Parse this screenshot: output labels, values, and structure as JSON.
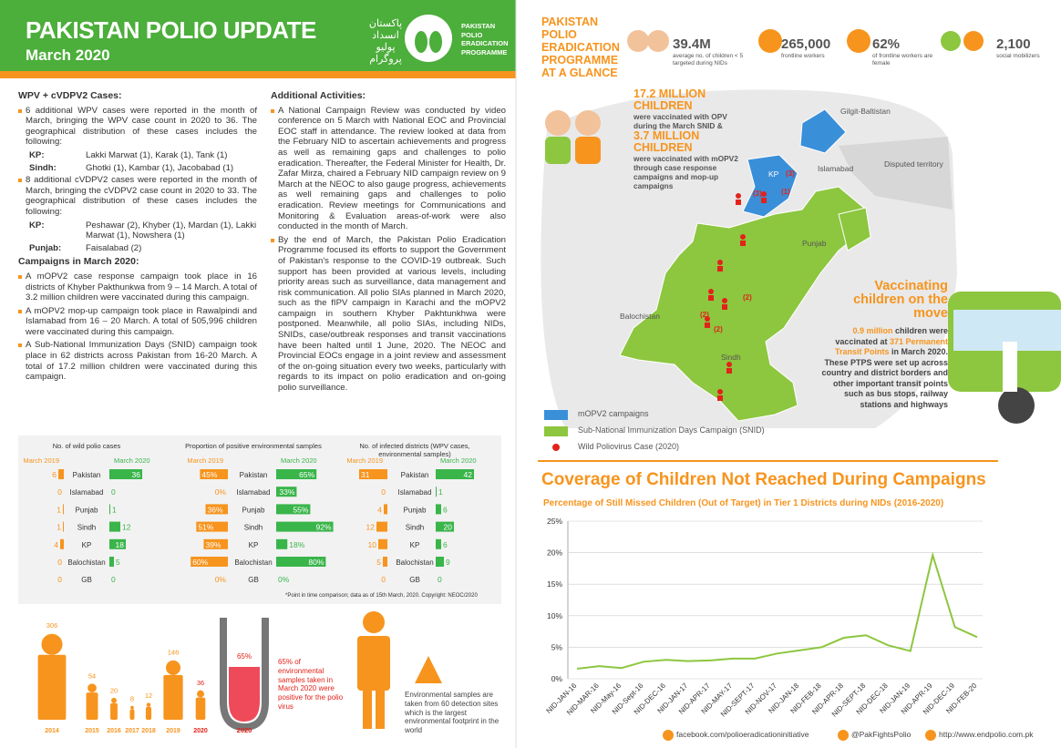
{
  "header": {
    "title": "PAKISTAN POLIO UPDATE",
    "subtitle": "March 2020",
    "urdu": "پاکستان انسداد پولیو پروگرام",
    "logo_text": "PAKISTAN POLIO ERADICATION PROGRAMME"
  },
  "glance": {
    "title": "PAKISTAN POLIO ERADICATION PROGRAMME AT A GLANCE",
    "stats": [
      {
        "value": "39.4M",
        "label": "average no. of children < 5 targeted during NIDs"
      },
      {
        "value": "265,000",
        "label": "frontline workers"
      },
      {
        "value": "62%",
        "label": "of frontline workers are female"
      },
      {
        "value": "2,100",
        "label": "social mobilizers"
      }
    ]
  },
  "wpv": {
    "heading": "WPV + cVDPV2 Cases:",
    "items": [
      {
        "text": "6 additional WPV cases were reported in the month of March, bringing the WPV case count in 2020 to 36. The geographical distribution of these cases includes the following:",
        "sub": [
          {
            "region": "KP:",
            "detail": "Lakki Marwat (1), Karak (1), Tank (1)"
          },
          {
            "region": "Sindh:",
            "detail": "Ghotki (1), Kambar (1), Jacobabad (1)"
          }
        ]
      },
      {
        "text": "8 additional cVDPV2 cases were reported in the month of March, bringing the cVDPV2 case count in 2020 to 33. The geographical distribution of these cases includes the following:",
        "sub": [
          {
            "region": "KP:",
            "detail": "Peshawar (2), Khyber (1), Mardan (1), Lakki Marwat (1), Nowshera (1)"
          },
          {
            "region": "Punjab:",
            "detail": "Faisalabad (2)"
          }
        ]
      }
    ]
  },
  "campaigns": {
    "heading": "Campaigns in March 2020:",
    "items": [
      {
        "text": "A mOPV2 case response campaign took place in 16 districts of Khyber Pakthunkwa from 9 – 14 March. A total of 3.2 million children were vaccinated during this campaign."
      },
      {
        "text": "A mOPV2 mop-up campaign took place in Rawalpindi and Islamabad from 16 – 20 March. A total of 505,996 children were vaccinated during this campaign."
      },
      {
        "text": "A Sub-National Immunization Days (SNID) campaign took place in 62 districts across Pakistan from 16-20 March. A total of 17.2 million children were vaccinated during this campaign."
      }
    ]
  },
  "activities": {
    "heading": "Additional Activities:",
    "items": [
      {
        "text": "A National Campaign Review was conducted by video conference on 5 March with National EOC and Provincial EOC staff in attendance. The review looked at data from the February NID to ascertain achievements and progress as well as remaining gaps and challenges to polio eradication. Thereafter, the Federal Minister for Health, Dr. Zafar Mirza, chaired a February NID campaign review on 9 March at the NEOC to also gauge progress, achievements as well remaining gaps and challenges to polio eradication. Review meetings for Communications and Monitoring & Evaluation areas-of-work were also conducted in the month of March."
      },
      {
        "text": "By the end of March, the Pakistan Polio Eradication Programme focused its efforts to support the Government of Pakistan's response to the COVID-19 outbreak. Such support has been provided at various levels, including priority areas such as surveillance, data management and risk communication. All polio SIAs planned in March 2020, such as the fIPV campaign in Karachi and the mOPV2 campaign in southern Khyber Pakhtunkhwa were postponed. Meanwhile, all polio SIAs, including NIDs, SNIDs, case/outbreak responses and transit vaccinations have been halted until 1 June, 2020. The NEOC and Provincial EOCs engage in a joint review and assessment of the on-going situation every two weeks, particularly with regards to its impact on polio eradication and on-going polio surveillance."
      }
    ]
  },
  "map": {
    "callout": [
      {
        "text": "17.2 MILLION CHILDREN",
        "emphasis": true
      },
      {
        "text": "were vaccinated with OPV during the March SNID &",
        "emphasis": false
      },
      {
        "text": "3.7 MILLION CHILDREN",
        "emphasis": true
      },
      {
        "text": "were vaccinated with mOPV2 through case response campaigns and mop-up campaigns",
        "emphasis": false
      }
    ],
    "labels": [
      "Gilgit-Baltistan",
      "Disputed territory",
      "Islamabad",
      "KP",
      "Punjab",
      "Balochistan",
      "Sindh"
    ],
    "case_counts": [
      "(3)",
      "(3)",
      "(1)",
      "(2)",
      "(2)",
      "(2)"
    ],
    "legend": [
      {
        "name": "mOPV2 campaigns",
        "color": "#3a8fd9"
      },
      {
        "name": "Sub-National Immunization Days Campaign (SNID)",
        "color": "#8dc63f"
      },
      {
        "name": "Wild Poliovirus Case (2020)",
        "color": "#e2231a"
      }
    ]
  },
  "transit": {
    "title": "Vaccinating children on the move",
    "segments": [
      {
        "text": "0.9 million",
        "emphasis": true
      },
      {
        "text": " children were vaccinated at ",
        "emphasis": false
      },
      {
        "text": "371 Permanent Transit Points",
        "emphasis": true
      },
      {
        "text": " in March 2020. These PTPS were set up across country and district borders and other important transit points such as bus stops, railway stations and highways",
        "emphasis": false
      }
    ]
  },
  "tables": [
    {
      "title": "No. of wild polio cases",
      "regions": [
        "Pakistan",
        "Islamabad",
        "Punjab",
        "Sindh",
        "KP",
        "Balochistan",
        "GB"
      ],
      "series": [
        {
          "name": "March 2019",
          "color": "#f7941d",
          "values": [
            6,
            0,
            1,
            1,
            4,
            0,
            0
          ]
        },
        {
          "name": "March 2020",
          "color": "#39b54a",
          "values": [
            36,
            0,
            1,
            12,
            18,
            5,
            0
          ]
        }
      ]
    },
    {
      "title": "Proportion of positive environmental samples",
      "regions": [
        "Pakistan",
        "Islamabad",
        "Punjab",
        "Sindh",
        "KP",
        "Balochistan",
        "GB"
      ],
      "series": [
        {
          "name": "March 2019",
          "color": "#f7941d",
          "values": [
            45,
            0,
            36,
            51,
            39,
            60,
            0
          ],
          "value_labels": [
            "45%",
            "0%",
            "36%",
            "51%",
            "39%",
            "60%",
            "0%"
          ]
        },
        {
          "name": "March 2020",
          "color": "#39b54a",
          "values": [
            65,
            33,
            55,
            92,
            18,
            80,
            0
          ],
          "value_labels": [
            "65%",
            "33%",
            "55%",
            "92%",
            "18%",
            "80%",
            "0%"
          ]
        }
      ]
    },
    {
      "title": "No. of infected districts (WPV cases, environmental samples)",
      "regions": [
        "Pakistan",
        "Islamabad",
        "Punjab",
        "Sindh",
        "KP",
        "Balochistan",
        "GB"
      ],
      "series": [
        {
          "name": "March 2019",
          "color": "#f7941d",
          "values": [
            31,
            0,
            4,
            12,
            10,
            5,
            0
          ]
        },
        {
          "name": "March 2020",
          "color": "#39b54a",
          "values": [
            42,
            1,
            6,
            20,
            6,
            9,
            0
          ]
        }
      ]
    }
  ],
  "tables_note": "*Point in time comparison; data as of 15th March, 2020. Copyright: NEOC/2020",
  "cases_by_year": {
    "years": [
      "2014",
      "2015",
      "2016",
      "2017",
      "2018",
      "2019",
      "2020"
    ],
    "values": [
      306,
      54,
      20,
      8,
      12,
      146,
      36
    ]
  },
  "env_samples": {
    "tube_label": "65%",
    "year": "2020",
    "text": "65% of environmental samples taken in March 2020 were positive for the polio virus"
  },
  "env_sites": {
    "text": "Environmental samples are taken from 60 detection sites which is the largest environmental footprint in the world"
  },
  "chart_data": {
    "type": "line",
    "title": "Coverage of Children Not Reached During Campaigns",
    "subtitle": "Percentage of Still Missed Children (Out of Target) in Tier 1 Districts during NIDs (2016-2020)",
    "categories": [
      "NID-JAN-16",
      "NID-MAR-16",
      "NID-May-16",
      "NID-Sept-16",
      "NID-DEC-16",
      "NID-JAN-17",
      "NID-APR-17",
      "NID-MAY-17",
      "NID-SEPT-17",
      "NID-NOV-17",
      "NID-JAN-18",
      "NID-FEB-18",
      "NID-APR-18",
      "NID-SEPT-18",
      "NID-DEC-18",
      "NID-JAN-19",
      "NID-APR-19",
      "NID-DEC-19",
      "NID-FEB-20"
    ],
    "values": [
      1.6,
      2.0,
      1.7,
      2.7,
      3.0,
      2.8,
      2.9,
      3.2,
      3.2,
      4.0,
      4.5,
      5.0,
      6.5,
      6.9,
      5.3,
      4.4,
      19.6,
      8.2,
      6.6
    ],
    "color": "#8dc63f",
    "ylim": [
      0,
      25
    ],
    "yticks": [
      {
        "value": 0,
        "label": "0%"
      },
      {
        "value": 5,
        "label": "5%"
      },
      {
        "value": 10,
        "label": "10%"
      },
      {
        "value": 15,
        "label": "15%"
      },
      {
        "value": 20,
        "label": "20%"
      },
      {
        "value": 25,
        "label": "25%"
      }
    ],
    "grid": true
  },
  "footer": [
    "facebook.com/polioeradicationinitiative",
    "@PakFightsPolio",
    "http://www.endpolio.com.pk"
  ]
}
